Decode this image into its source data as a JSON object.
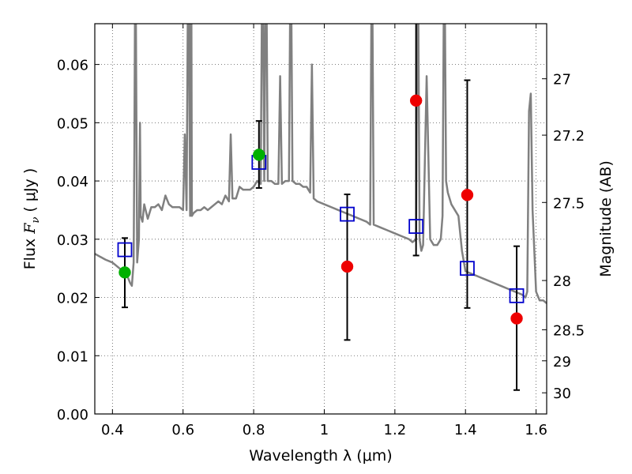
{
  "chart_data": {
    "type": "scatter",
    "title": "",
    "xlabel": "Wavelength  λ (μm)",
    "ylabel": "Flux  Fν ( μJy )",
    "ylabel_parts": {
      "pre": "Flux  ",
      "sym": "F",
      "sub": "ν",
      "post": "  (  μJy )"
    },
    "y2label": "Magnitude (AB)",
    "xlim": [
      0.35,
      1.63
    ],
    "ylim": [
      0.0,
      0.067
    ],
    "grid": true,
    "x_ticks": [
      {
        "value": 0.4,
        "label": "0.4"
      },
      {
        "value": 0.6,
        "label": "0.6"
      },
      {
        "value": 0.8,
        "label": "0.8"
      },
      {
        "value": 1.0,
        "label": "1"
      },
      {
        "value": 1.2,
        "label": "1.2"
      },
      {
        "value": 1.4,
        "label": "1.4"
      },
      {
        "value": 1.6,
        "label": "1.6"
      }
    ],
    "y_ticks": [
      {
        "value": 0.0,
        "label": "0.00"
      },
      {
        "value": 0.01,
        "label": "0.01"
      },
      {
        "value": 0.02,
        "label": "0.02"
      },
      {
        "value": 0.03,
        "label": "0.03"
      },
      {
        "value": 0.04,
        "label": "0.04"
      },
      {
        "value": 0.05,
        "label": "0.05"
      },
      {
        "value": 0.06,
        "label": "0.06"
      }
    ],
    "y2_ticks": [
      {
        "magnitude": 27,
        "label": "27"
      },
      {
        "magnitude": 27.2,
        "label": "27.2"
      },
      {
        "magnitude": 27.5,
        "label": "27.5"
      },
      {
        "magnitude": 28,
        "label": "28"
      },
      {
        "magnitude": 28.5,
        "label": "28.5"
      },
      {
        "magnitude": 29,
        "label": "29"
      },
      {
        "magnitude": 30,
        "label": "30"
      }
    ],
    "colors": {
      "sed": "#808080",
      "model": "#0000cc",
      "detected": "#00b000",
      "undetected": "#ee0000",
      "errorbar": "#000000",
      "grid": "#555555"
    },
    "series": [
      {
        "role": "sed_template",
        "type": "line",
        "x": [
          0.35,
          0.38,
          0.4,
          0.42,
          0.44,
          0.45,
          0.455,
          0.46,
          0.462,
          0.465,
          0.47,
          0.475,
          0.478,
          0.48,
          0.485,
          0.49,
          0.5,
          0.51,
          0.52,
          0.53,
          0.54,
          0.55,
          0.56,
          0.57,
          0.58,
          0.59,
          0.6,
          0.605,
          0.61,
          0.615,
          0.62,
          0.623,
          0.625,
          0.63,
          0.64,
          0.65,
          0.66,
          0.67,
          0.68,
          0.69,
          0.7,
          0.71,
          0.72,
          0.73,
          0.735,
          0.74,
          0.75,
          0.76,
          0.77,
          0.78,
          0.79,
          0.8,
          0.81,
          0.82,
          0.825,
          0.83,
          0.835,
          0.84,
          0.85,
          0.86,
          0.87,
          0.875,
          0.88,
          0.89,
          0.9,
          0.905,
          0.91,
          0.92,
          0.93,
          0.94,
          0.95,
          0.96,
          0.965,
          0.97,
          0.98,
          1.0,
          1.02,
          1.04,
          1.06,
          1.08,
          1.1,
          1.12,
          1.13,
          1.135,
          1.14,
          1.16,
          1.18,
          1.2,
          1.22,
          1.24,
          1.25,
          1.26,
          1.265,
          1.27,
          1.275,
          1.28,
          1.29,
          1.3,
          1.31,
          1.32,
          1.33,
          1.335,
          1.34,
          1.345,
          1.35,
          1.36,
          1.37,
          1.38,
          1.39,
          1.4,
          1.42,
          1.44,
          1.46,
          1.48,
          1.5,
          1.52,
          1.54,
          1.56,
          1.57,
          1.575,
          1.58,
          1.585,
          1.59,
          1.6,
          1.61,
          1.62,
          1.63
        ],
        "y": [
          0.0275,
          0.0265,
          0.026,
          0.025,
          0.024,
          0.0225,
          0.022,
          0.026,
          0.045,
          0.085,
          0.026,
          0.03,
          0.05,
          0.034,
          0.033,
          0.036,
          0.0335,
          0.0355,
          0.0355,
          0.036,
          0.035,
          0.0375,
          0.036,
          0.0355,
          0.0355,
          0.0355,
          0.035,
          0.048,
          0.035,
          0.085,
          0.034,
          0.085,
          0.034,
          0.0345,
          0.035,
          0.035,
          0.0355,
          0.035,
          0.0355,
          0.036,
          0.0365,
          0.036,
          0.0375,
          0.0365,
          0.048,
          0.037,
          0.037,
          0.039,
          0.0385,
          0.0385,
          0.0385,
          0.039,
          0.04,
          0.0395,
          0.085,
          0.04,
          0.085,
          0.04,
          0.04,
          0.0395,
          0.0395,
          0.058,
          0.0395,
          0.04,
          0.04,
          0.085,
          0.04,
          0.0395,
          0.0395,
          0.039,
          0.039,
          0.038,
          0.06,
          0.037,
          0.0365,
          0.036,
          0.0355,
          0.035,
          0.0345,
          0.034,
          0.0335,
          0.033,
          0.0325,
          0.085,
          0.0325,
          0.032,
          0.0315,
          0.031,
          0.0305,
          0.03,
          0.0295,
          0.03,
          0.085,
          0.03,
          0.028,
          0.029,
          0.058,
          0.03,
          0.029,
          0.029,
          0.03,
          0.034,
          0.085,
          0.04,
          0.038,
          0.036,
          0.035,
          0.034,
          0.028,
          0.0245,
          0.024,
          0.0235,
          0.023,
          0.0225,
          0.022,
          0.0215,
          0.021,
          0.0205,
          0.02,
          0.021,
          0.052,
          0.055,
          0.035,
          0.021,
          0.0195,
          0.0195,
          0.019
        ]
      },
      {
        "role": "model_photometry",
        "type": "scatter",
        "marker": "open-square",
        "x": [
          0.435,
          0.815,
          1.065,
          1.26,
          1.405,
          1.545
        ],
        "y": [
          0.0282,
          0.0432,
          0.0343,
          0.0322,
          0.025,
          0.0203
        ]
      },
      {
        "role": "observed_detected",
        "type": "scatter",
        "marker": "filled-circle",
        "x": [
          0.435,
          0.815
        ],
        "y": [
          0.0243,
          0.0445
        ],
        "yerr_low": [
          0.0183,
          0.0388
        ],
        "yerr_high": [
          0.0302,
          0.0503
        ]
      },
      {
        "role": "observed_undetected",
        "type": "scatter",
        "marker": "filled-circle",
        "x": [
          1.065,
          1.26,
          1.405,
          1.545
        ],
        "y": [
          0.0253,
          0.0538,
          0.0376,
          0.0164
        ],
        "yerr_low": [
          0.0127,
          0.0272,
          0.0182,
          0.0041
        ],
        "yerr_high": [
          0.0377,
          0.07,
          0.0573,
          0.0288
        ]
      }
    ]
  }
}
